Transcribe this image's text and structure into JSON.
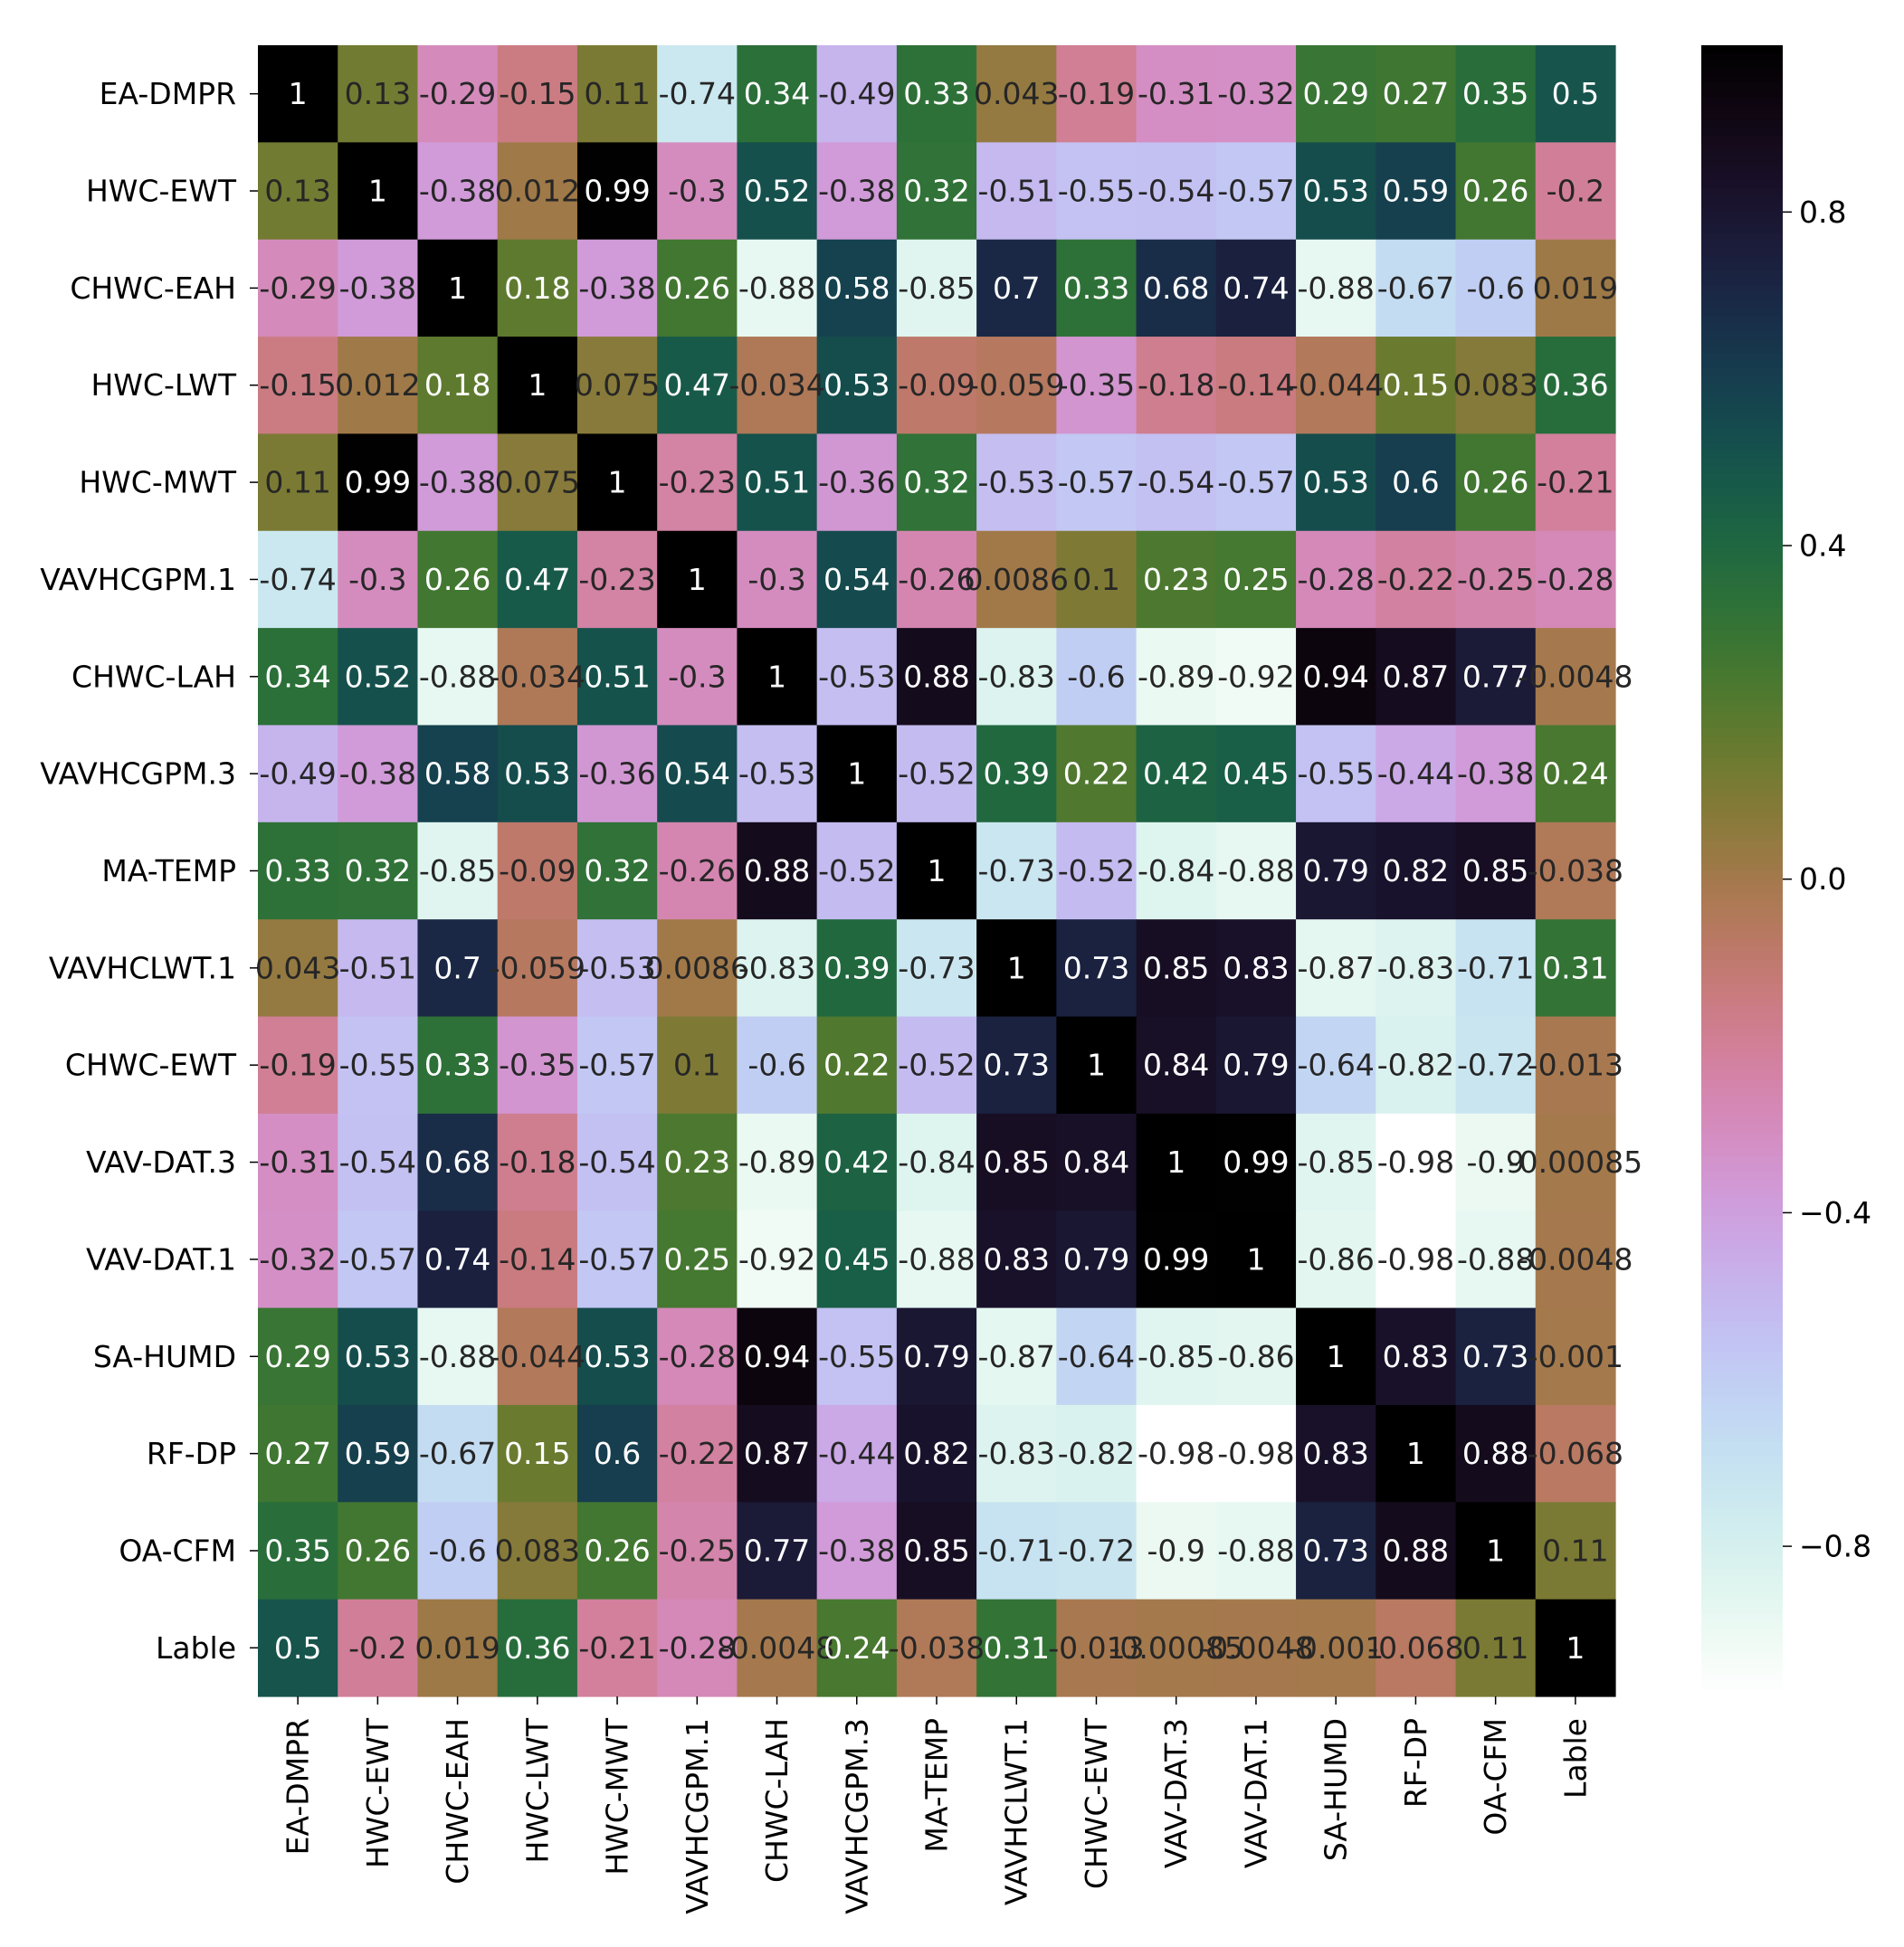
{
  "chart_data": {
    "type": "heatmap",
    "title": "",
    "xlabel": "",
    "ylabel": "",
    "labels": [
      "EA-DMPR",
      "HWC-EWT",
      "CHWC-EAH",
      "HWC-LWT",
      "HWC-MWT",
      "VAVHCGPM.1",
      "CHWC-LAH",
      "VAVHCGPM.3",
      "MA-TEMP",
      "VAVHCLWT.1",
      "CHWC-EWT",
      "VAV-DAT.3",
      "VAV-DAT.1",
      "SA-HUMD",
      "RF-DP",
      "OA-CFM",
      "Lable"
    ],
    "values": [
      [
        1,
        0.13,
        -0.29,
        -0.15,
        0.11,
        -0.74,
        0.34,
        -0.49,
        0.33,
        0.043,
        -0.19,
        -0.31,
        -0.32,
        0.29,
        0.27,
        0.35,
        0.5
      ],
      [
        0.13,
        1,
        -0.38,
        0.012,
        0.99,
        -0.3,
        0.52,
        -0.38,
        0.32,
        -0.51,
        -0.55,
        -0.54,
        -0.57,
        0.53,
        0.59,
        0.26,
        -0.2
      ],
      [
        -0.29,
        -0.38,
        1,
        0.18,
        -0.38,
        0.26,
        -0.88,
        0.58,
        -0.85,
        0.7,
        0.33,
        0.68,
        0.74,
        -0.88,
        -0.67,
        -0.6,
        0.019
      ],
      [
        -0.15,
        0.012,
        0.18,
        1,
        0.075,
        0.47,
        -0.034,
        0.53,
        -0.09,
        -0.059,
        -0.35,
        -0.18,
        -0.14,
        -0.044,
        0.15,
        0.083,
        0.36
      ],
      [
        0.11,
        0.99,
        -0.38,
        0.075,
        1,
        -0.23,
        0.51,
        -0.36,
        0.32,
        -0.53,
        -0.57,
        -0.54,
        -0.57,
        0.53,
        0.6,
        0.26,
        -0.21
      ],
      [
        -0.74,
        -0.3,
        0.26,
        0.47,
        -0.23,
        1,
        -0.3,
        0.54,
        -0.26,
        0.0086,
        0.1,
        0.23,
        0.25,
        -0.28,
        -0.22,
        -0.25,
        -0.28
      ],
      [
        0.34,
        0.52,
        -0.88,
        -0.034,
        0.51,
        -0.3,
        1,
        -0.53,
        0.88,
        -0.83,
        -0.6,
        -0.89,
        -0.92,
        0.94,
        0.87,
        0.77,
        -0.0048
      ],
      [
        -0.49,
        -0.38,
        0.58,
        0.53,
        -0.36,
        0.54,
        -0.53,
        1,
        -0.52,
        0.39,
        0.22,
        0.42,
        0.45,
        -0.55,
        -0.44,
        -0.38,
        0.24
      ],
      [
        0.33,
        0.32,
        -0.85,
        -0.09,
        0.32,
        -0.26,
        0.88,
        -0.52,
        1,
        -0.73,
        -0.52,
        -0.84,
        -0.88,
        0.79,
        0.82,
        0.85,
        -0.038
      ],
      [
        0.043,
        -0.51,
        0.7,
        -0.059,
        -0.53,
        0.0086,
        -0.83,
        0.39,
        -0.73,
        1,
        0.73,
        0.85,
        0.83,
        -0.87,
        -0.83,
        -0.71,
        0.31
      ],
      [
        -0.19,
        -0.55,
        0.33,
        -0.35,
        -0.57,
        0.1,
        -0.6,
        0.22,
        -0.52,
        0.73,
        1,
        0.84,
        0.79,
        -0.64,
        -0.82,
        -0.72,
        -0.013
      ],
      [
        -0.31,
        -0.54,
        0.68,
        -0.18,
        -0.54,
        0.23,
        -0.89,
        0.42,
        -0.84,
        0.85,
        0.84,
        1,
        0.99,
        -0.85,
        -0.98,
        -0.9,
        -0.00085
      ],
      [
        -0.32,
        -0.57,
        0.74,
        -0.14,
        -0.57,
        0.25,
        -0.92,
        0.45,
        -0.88,
        0.83,
        0.79,
        0.99,
        1,
        -0.86,
        -0.98,
        -0.88,
        -0.0048
      ],
      [
        0.29,
        0.53,
        -0.88,
        -0.044,
        0.53,
        -0.28,
        0.94,
        -0.55,
        0.79,
        -0.87,
        -0.64,
        -0.85,
        -0.86,
        1,
        0.83,
        0.73,
        -0.001
      ],
      [
        0.27,
        0.59,
        -0.67,
        0.15,
        0.6,
        -0.22,
        0.87,
        -0.44,
        0.82,
        -0.83,
        -0.82,
        -0.98,
        -0.98,
        0.83,
        1,
        0.88,
        -0.068
      ],
      [
        0.35,
        0.26,
        -0.6,
        0.083,
        0.26,
        -0.25,
        0.77,
        -0.38,
        0.85,
        -0.71,
        -0.72,
        -0.9,
        -0.88,
        0.73,
        0.88,
        1,
        0.11
      ],
      [
        0.5,
        -0.2,
        0.019,
        0.36,
        -0.21,
        -0.28,
        -0.0048,
        0.24,
        -0.038,
        0.31,
        -0.013,
        -0.00085,
        -0.0048,
        -0.001,
        -0.068,
        0.11,
        1
      ]
    ],
    "annotations": [
      [
        "1",
        "0.13",
        "-0.29",
        "-0.15",
        "0.11",
        "-0.74",
        "0.34",
        "-0.49",
        "0.33",
        "0.043",
        "-0.19",
        "-0.31",
        "-0.32",
        "0.29",
        "0.27",
        "0.35",
        "0.5"
      ],
      [
        "0.13",
        "1",
        "-0.38",
        "0.012",
        "0.99",
        "-0.3",
        "0.52",
        "-0.38",
        "0.32",
        "-0.51",
        "-0.55",
        "-0.54",
        "-0.57",
        "0.53",
        "0.59",
        "0.26",
        "-0.2"
      ],
      [
        "-0.29",
        "-0.38",
        "1",
        "0.18",
        "-0.38",
        "0.26",
        "-0.88",
        "0.58",
        "-0.85",
        "0.7",
        "0.33",
        "0.68",
        "0.74",
        "-0.88",
        "-0.67",
        "-0.6",
        "0.019"
      ],
      [
        "-0.15",
        "0.012",
        "0.18",
        "1",
        "0.075",
        "0.47",
        "-0.034",
        "0.53",
        "-0.09",
        "-0.059",
        "-0.35",
        "-0.18",
        "-0.14",
        "-0.044",
        "0.15",
        "0.083",
        "0.36"
      ],
      [
        "0.11",
        "0.99",
        "-0.38",
        "0.075",
        "1",
        "-0.23",
        "0.51",
        "-0.36",
        "0.32",
        "-0.53",
        "-0.57",
        "-0.54",
        "-0.57",
        "0.53",
        "0.6",
        "0.26",
        "-0.21"
      ],
      [
        "-0.74",
        "-0.3",
        "0.26",
        "0.47",
        "-0.23",
        "1",
        "-0.3",
        "0.54",
        "-0.26",
        "0.0086",
        "0.1",
        "0.23",
        "0.25",
        "-0.28",
        "-0.22",
        "-0.25",
        "-0.28"
      ],
      [
        "0.34",
        "0.52",
        "-0.88",
        "-0.034",
        "0.51",
        "-0.3",
        "1",
        "-0.53",
        "0.88",
        "-0.83",
        "-0.6",
        "-0.89",
        "-0.92",
        "0.94",
        "0.87",
        "0.77",
        "-0.0048"
      ],
      [
        "-0.49",
        "-0.38",
        "0.58",
        "0.53",
        "-0.36",
        "0.54",
        "-0.53",
        "1",
        "-0.52",
        "0.39",
        "0.22",
        "0.42",
        "0.45",
        "-0.55",
        "-0.44",
        "-0.38",
        "0.24"
      ],
      [
        "0.33",
        "0.32",
        "-0.85",
        "-0.09",
        "0.32",
        "-0.26",
        "0.88",
        "-0.52",
        "1",
        "-0.73",
        "-0.52",
        "-0.84",
        "-0.88",
        "0.79",
        "0.82",
        "0.85",
        "-0.038"
      ],
      [
        "0.043",
        "-0.51",
        "0.7",
        "-0.059",
        "-0.53",
        "0.0086",
        "-0.83",
        "0.39",
        "-0.73",
        "1",
        "0.73",
        "0.85",
        "0.83",
        "-0.87",
        "-0.83",
        "-0.71",
        "0.31"
      ],
      [
        "-0.19",
        "-0.55",
        "0.33",
        "-0.35",
        "-0.57",
        "0.1",
        "-0.6",
        "0.22",
        "-0.52",
        "0.73",
        "1",
        "0.84",
        "0.79",
        "-0.64",
        "-0.82",
        "-0.72",
        "-0.013"
      ],
      [
        "-0.31",
        "-0.54",
        "0.68",
        "-0.18",
        "-0.54",
        "0.23",
        "-0.89",
        "0.42",
        "-0.84",
        "0.85",
        "0.84",
        "1",
        "0.99",
        "-0.85",
        "-0.98",
        "-0.9",
        "-0.00085"
      ],
      [
        "-0.32",
        "-0.57",
        "0.74",
        "-0.14",
        "-0.57",
        "0.25",
        "-0.92",
        "0.45",
        "-0.88",
        "0.83",
        "0.79",
        "0.99",
        "1",
        "-0.86",
        "-0.98",
        "-0.88",
        "-0.0048"
      ],
      [
        "0.29",
        "0.53",
        "-0.88",
        "-0.044",
        "0.53",
        "-0.28",
        "0.94",
        "-0.55",
        "0.79",
        "-0.87",
        "-0.64",
        "-0.85",
        "-0.86",
        "1",
        "0.83",
        "0.73",
        "-0.001"
      ],
      [
        "0.27",
        "0.59",
        "-0.67",
        "0.15",
        "0.6",
        "-0.22",
        "0.87",
        "-0.44",
        "0.82",
        "-0.83",
        "-0.82",
        "-0.98",
        "-0.98",
        "0.83",
        "1",
        "0.88",
        "-0.068"
      ],
      [
        "0.35",
        "0.26",
        "-0.6",
        "0.083",
        "0.26",
        "-0.25",
        "0.77",
        "-0.38",
        "0.85",
        "-0.71",
        "-0.72",
        "-0.9",
        "-0.88",
        "0.73",
        "0.88",
        "1",
        "0.11"
      ],
      [
        "0.5",
        "-0.2",
        "0.019",
        "0.36",
        "-0.21",
        "-0.28",
        "-0.0048",
        "0.24",
        "-0.038",
        "0.31",
        "-0.013",
        "-0.00085",
        "-0.0048",
        "-0.001",
        "-0.068",
        "0.11",
        "1"
      ]
    ],
    "colormap": "cubehelix_r",
    "colorbar": {
      "ticks": [
        0.8,
        0.4,
        0.0,
        -0.4,
        -0.8
      ],
      "tick_labels": [
        "0.8",
        "0.4",
        "0.0",
        "−0.4",
        "−0.8"
      ],
      "vmin": -0.98,
      "vmax": 1
    },
    "cell_text_colors": {
      "on_dark": "#ffffff",
      "on_light": "#262626"
    },
    "tick_color": "#000000"
  }
}
